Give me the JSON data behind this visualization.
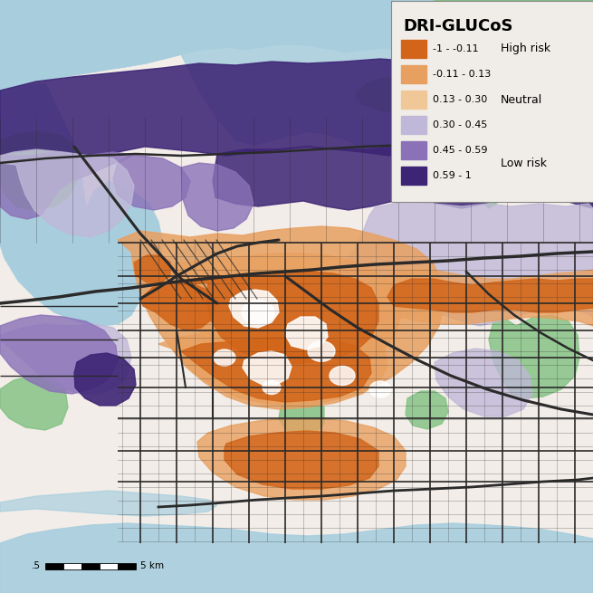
{
  "title": "DRI-GLUCoS",
  "legend_labels": [
    "-1 - -0.11",
    "-0.11 - 0.13",
    "0.13 - 0.30",
    "0.30 - 0.45",
    "0.45 - 0.59",
    "0.59 - 1"
  ],
  "legend_colors": [
    "#D2651A",
    "#E8A060",
    "#F0C898",
    "#C0B8D8",
    "#8B72B8",
    "#3D2475"
  ],
  "risk_labels": [
    "High risk",
    "Neutral",
    "Low risk"
  ],
  "water_color": "#A8CEDE",
  "greenspace_color": "#80C080",
  "bg_color": "#F2EDE8",
  "scale_bar_text": "5 km",
  "scale_bar_label": ".5",
  "legend_bg": "#F0EDE8",
  "road_color": "#2A2A2A",
  "road_minor_color": "#444444"
}
